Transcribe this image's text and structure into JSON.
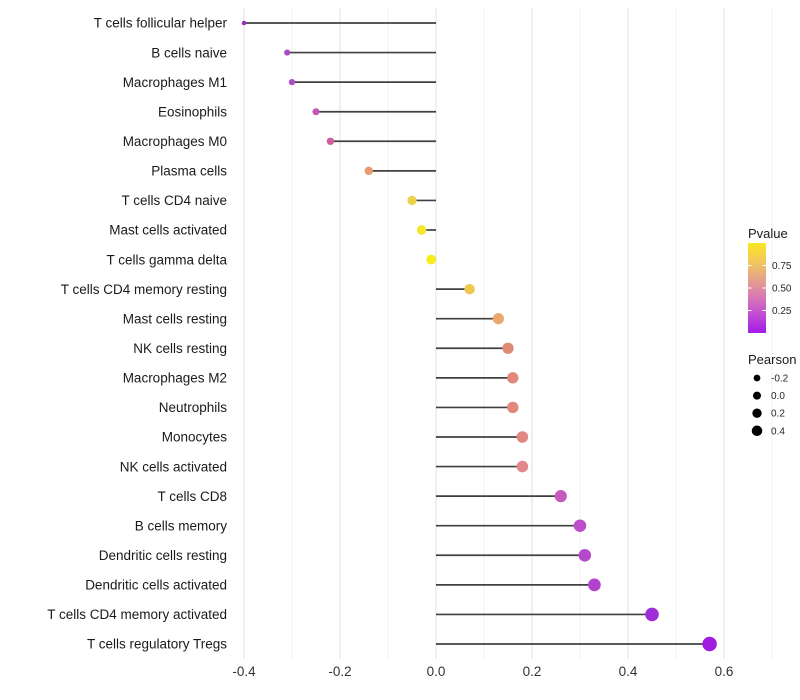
{
  "chart_data": {
    "type": "scatter",
    "variant": "lollipop-horizontal",
    "title": "",
    "xlabel": "",
    "ylabel": "",
    "xlim": [
      -0.43,
      0.74
    ],
    "x_tick_labels": [
      "-0.4",
      "-0.2",
      "0.0",
      "0.2",
      "0.4",
      "0.6"
    ],
    "x_tick_values": [
      -0.4,
      -0.2,
      0.0,
      0.2,
      0.4,
      0.6
    ],
    "x_minor_tick_values": [
      -0.3,
      -0.1,
      0.1,
      0.3,
      0.5,
      0.7
    ],
    "grid": "vertical-only",
    "baseline_x": 0.0,
    "points": [
      {
        "label": "T cells follicular helper",
        "pearson": -0.4,
        "color": "#962FBE"
      },
      {
        "label": "B cells naive",
        "pearson": -0.31,
        "color": "#AB4AC1"
      },
      {
        "label": "Macrophages M1",
        "pearson": -0.3,
        "color": "#AC4BC3"
      },
      {
        "label": "Eosinophils",
        "pearson": -0.25,
        "color": "#C055B5"
      },
      {
        "label": "Macrophages M0",
        "pearson": -0.22,
        "color": "#CC5F9D"
      },
      {
        "label": "Plasma cells",
        "pearson": -0.14,
        "color": "#E89B71"
      },
      {
        "label": "T cells CD4 naive",
        "pearson": -0.05,
        "color": "#EDD04C"
      },
      {
        "label": "Mast cells activated",
        "pearson": -0.03,
        "color": "#F5E72A"
      },
      {
        "label": "T cells gamma delta",
        "pearson": -0.01,
        "color": "#F7EC1D"
      },
      {
        "label": "T cells CD4 memory resting",
        "pearson": 0.07,
        "color": "#EEC952"
      },
      {
        "label": "Mast cells resting",
        "pearson": 0.13,
        "color": "#EBA76D"
      },
      {
        "label": "NK cells resting",
        "pearson": 0.15,
        "color": "#DF8B74"
      },
      {
        "label": "Macrophages M2",
        "pearson": 0.16,
        "color": "#E0897A"
      },
      {
        "label": "Neutrophils",
        "pearson": 0.16,
        "color": "#E0897A"
      },
      {
        "label": "Monocytes",
        "pearson": 0.18,
        "color": "#E18682"
      },
      {
        "label": "NK cells activated",
        "pearson": 0.18,
        "color": "#E2878B"
      },
      {
        "label": "T cells CD8",
        "pearson": 0.26,
        "color": "#C65ABC"
      },
      {
        "label": "B cells memory",
        "pearson": 0.3,
        "color": "#BB4EC9"
      },
      {
        "label": "Dendritic cells resting",
        "pearson": 0.31,
        "color": "#B549CC"
      },
      {
        "label": "Dendritic cells activated",
        "pearson": 0.33,
        "color": "#B143CF"
      },
      {
        "label": "T cells CD4 memory activated",
        "pearson": 0.45,
        "color": "#9F2ED9"
      },
      {
        "label": "T cells regulatory  Tregs",
        "pearson": 0.57,
        "color": "#A11EE1"
      }
    ],
    "legends": [
      {
        "type": "colorbar",
        "title": "Pvalue",
        "range": [
          0,
          1
        ],
        "tick_labels": [
          "0.75",
          "0.50",
          "0.25"
        ],
        "tick_values": [
          0.75,
          0.5,
          0.25
        ],
        "gradient_top_to_bottom": [
          "#F9E721",
          "#F2C95B",
          "#E6A288",
          "#D878B4",
          "#C04BD4",
          "#A21BEA"
        ]
      },
      {
        "type": "size",
        "title": "Pearson",
        "dot_color": "#000000",
        "entries": [
          {
            "label": "-0.2",
            "value": -0.2
          },
          {
            "label": "0.0",
            "value": 0.0
          },
          {
            "label": "0.2",
            "value": 0.2
          },
          {
            "label": "0.4",
            "value": 0.4
          }
        ]
      }
    ],
    "style": {
      "stem_color": "#404040",
      "grid_major_color": "#E4E4E4",
      "grid_minor_color": "#F2F2F2",
      "axis_text_color": "#333333",
      "label_text_color": "#1A1A1A",
      "legend_title_color": "#1A1A1A",
      "background": "#FFFFFF"
    }
  }
}
